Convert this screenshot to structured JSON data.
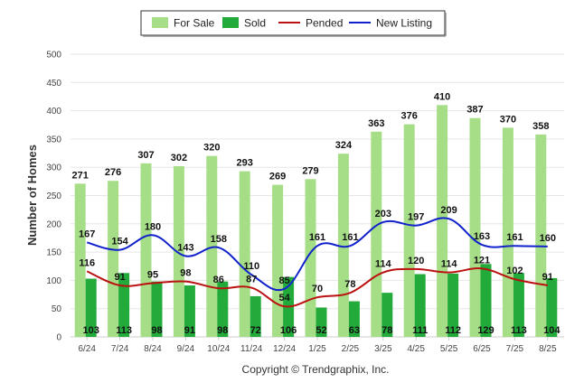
{
  "chart_data": {
    "type": "bar",
    "categories": [
      "6/24",
      "7/24",
      "8/24",
      "9/24",
      "10/24",
      "11/24",
      "12/24",
      "1/25",
      "2/25",
      "3/25",
      "4/25",
      "5/25",
      "6/25",
      "7/25",
      "8/25"
    ],
    "series": [
      {
        "name": "For Sale",
        "type": "bar",
        "color": "#a6de87",
        "values": [
          271,
          276,
          307,
          302,
          320,
          293,
          269,
          279,
          324,
          363,
          376,
          410,
          387,
          370,
          358
        ]
      },
      {
        "name": "Sold",
        "type": "bar",
        "color": "#22aa3a",
        "values": [
          103,
          113,
          98,
          91,
          98,
          72,
          106,
          52,
          63,
          78,
          111,
          112,
          129,
          113,
          104
        ]
      },
      {
        "name": "Pended",
        "type": "line",
        "color": "#bb1111",
        "values": [
          116,
          91,
          95,
          98,
          86,
          87,
          54,
          70,
          78,
          114,
          120,
          114,
          121,
          102,
          91
        ]
      },
      {
        "name": "New Listing",
        "type": "line",
        "color": "#1122cc",
        "values": [
          167,
          154,
          180,
          143,
          158,
          110,
          85,
          161,
          161,
          203,
          197,
          209,
          163,
          161,
          160
        ]
      }
    ],
    "ylabel": "Number of Homes",
    "xlabel": "",
    "ylim": [
      0,
      500
    ],
    "yticks": [
      0,
      50,
      100,
      150,
      200,
      250,
      300,
      350,
      400,
      450,
      500
    ],
    "grid": true,
    "legend_position": "top-center"
  },
  "footer": {
    "copyright": "Copyright © Trendgraphix, Inc."
  }
}
